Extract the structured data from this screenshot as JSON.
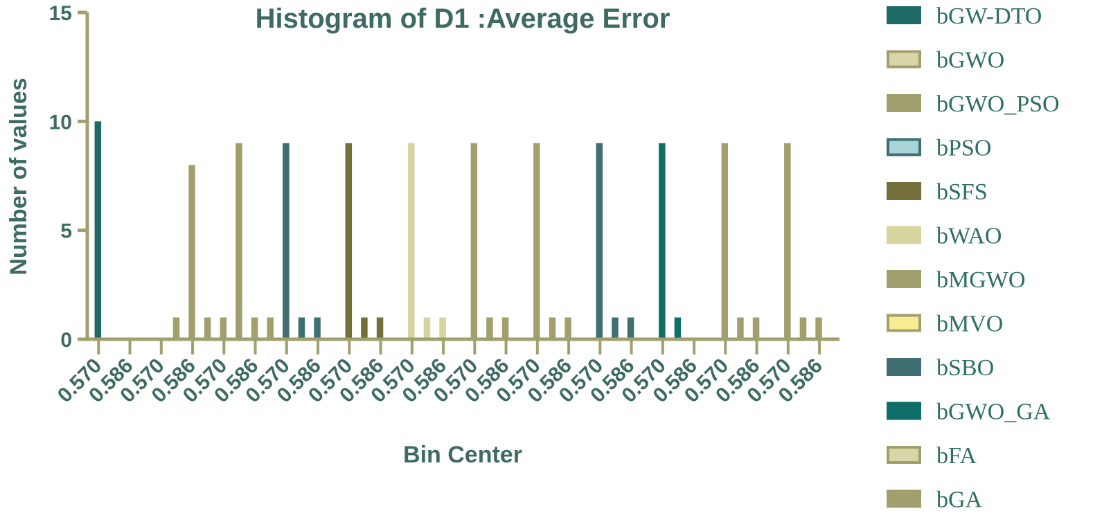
{
  "chart_data": {
    "type": "bar",
    "title": "Histogram of D1 :Average Error",
    "xlabel": "Bin Center",
    "ylabel": "Number of values",
    "ylim": [
      0,
      15
    ],
    "yticks": [
      0,
      5,
      10,
      15
    ],
    "grid": false,
    "legend_position": "right",
    "x_tick_labels": [
      "0.570",
      "0.586",
      "0.570",
      "0.586",
      "0.570",
      "0.586",
      "0.570",
      "0.586",
      "0.570",
      "0.586",
      "0.570",
      "0.586",
      "0.570",
      "0.586",
      "0.570",
      "0.586",
      "0.570",
      "0.586",
      "0.570",
      "0.586",
      "0.570",
      "0.586",
      "0.570",
      "0.586"
    ],
    "series": [
      {
        "name": "bGW-DTO",
        "color": "#1e6b66",
        "bins": [
          {
            "x": "0.570",
            "value": 10
          },
          {
            "x": "0.586",
            "value": 0
          }
        ]
      },
      {
        "name": "bGWO",
        "color": "#a29f6e",
        "bins": [
          {
            "x": "0.570",
            "value": 0
          },
          {
            "x": "0.5780",
            "value": 1
          },
          {
            "x": "0.586",
            "value": 8
          },
          {
            "x": "0.5940",
            "value": 1
          }
        ]
      },
      {
        "name": "bGWO_PSO",
        "color": "#a29f6e",
        "bins": [
          {
            "x": "0.5780",
            "value": 1
          },
          {
            "x": "0.570",
            "value": 9
          },
          {
            "x": "0.586",
            "value": 1
          },
          {
            "x": "0.5940",
            "value": 1
          }
        ]
      },
      {
        "name": "bPSO",
        "color": "#3f6f70",
        "bins": [
          {
            "x": "0.570",
            "value": 9
          },
          {
            "x": "0.586",
            "value": 1
          },
          {
            "x": "0.5940",
            "value": 1
          }
        ]
      },
      {
        "name": "bSFS",
        "color": "#736f3a",
        "bins": [
          {
            "x": "0.586",
            "value": 9
          },
          {
            "x": "0.5940",
            "value": 1
          },
          {
            "x": "0.6020",
            "value": 1
          }
        ]
      },
      {
        "name": "bWAO",
        "color": "#d6d49e",
        "bins": [
          {
            "x": "0.570",
            "value": 9
          },
          {
            "x": "0.586",
            "value": 1
          },
          {
            "x": "0.5940",
            "value": 1
          }
        ]
      },
      {
        "name": "bMGWO",
        "color": "#a29f6e",
        "bins": [
          {
            "x": "0.586",
            "value": 9
          },
          {
            "x": "0.5940",
            "value": 1
          },
          {
            "x": "0.6020",
            "value": 1
          }
        ]
      },
      {
        "name": "bMVO",
        "color": "#a29f6e",
        "bins": [
          {
            "x": "0.570",
            "value": 9
          },
          {
            "x": "0.586",
            "value": 1
          },
          {
            "x": "0.5940",
            "value": 1
          }
        ]
      },
      {
        "name": "bSBO",
        "color": "#3f6f70",
        "bins": [
          {
            "x": "0.586",
            "value": 9
          },
          {
            "x": "0.5940",
            "value": 1
          },
          {
            "x": "0.6020",
            "value": 1
          }
        ]
      },
      {
        "name": "bGWO_GA",
        "color": "#0f6e68",
        "bins": [
          {
            "x": "0.586",
            "value": 9
          },
          {
            "x": "0.5940",
            "value": 1
          }
        ]
      },
      {
        "name": "bFA",
        "color": "#a29f6e",
        "bins": [
          {
            "x": "0.570",
            "value": 9
          },
          {
            "x": "0.586",
            "value": 1
          },
          {
            "x": "0.5940",
            "value": 1
          }
        ]
      },
      {
        "name": "bGA",
        "color": "#a29f6e",
        "bins": [
          {
            "x": "0.570",
            "value": 9
          },
          {
            "x": "0.586",
            "value": 1
          },
          {
            "x": "0.5940",
            "value": 1
          }
        ]
      }
    ]
  },
  "legend": [
    {
      "label": "bGW-DTO",
      "fill": "#1e6b66",
      "stroke": "#1e6b66"
    },
    {
      "label": "bGWO",
      "fill": "#d8d6a8",
      "stroke": "#a29f6e"
    },
    {
      "label": "bGWO_PSO",
      "fill": "#a29f6e",
      "stroke": "#a29f6e"
    },
    {
      "label": "bPSO",
      "fill": "#a8d6d8",
      "stroke": "#3f6f70"
    },
    {
      "label": "bSFS",
      "fill": "#736f3a",
      "stroke": "#736f3a"
    },
    {
      "label": "bWAO",
      "fill": "#d6d49e",
      "stroke": "#d6d49e"
    },
    {
      "label": "bMGWO",
      "fill": "#a29f6e",
      "stroke": "#a29f6e"
    },
    {
      "label": "bMVO",
      "fill": "#f8ec90",
      "stroke": "#a29f6e"
    },
    {
      "label": "bSBO",
      "fill": "#3f6f70",
      "stroke": "#3f6f70"
    },
    {
      "label": "bGWO_GA",
      "fill": "#0f6e68",
      "stroke": "#0f6e68"
    },
    {
      "label": "bFA",
      "fill": "#d8d6a8",
      "stroke": "#a29f6e"
    },
    {
      "label": "bGA",
      "fill": "#a29f6e",
      "stroke": "#a29f6e"
    }
  ],
  "colors": {
    "axis": "#a29f6e",
    "text": "#3d6b63"
  }
}
